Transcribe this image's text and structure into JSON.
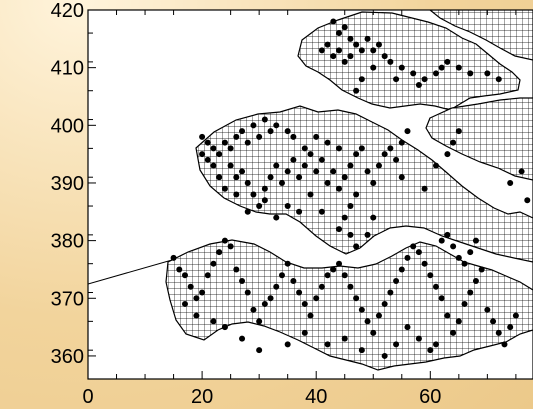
{
  "chart_data": {
    "type": "scatter",
    "title": "",
    "xlabel": "",
    "ylabel": "",
    "xlim": [
      0,
      78
    ],
    "ylim": [
      356,
      420
    ],
    "x_ticks": [
      0,
      20,
      40,
      60
    ],
    "y_ticks": [
      360,
      370,
      380,
      390,
      400,
      410,
      420
    ],
    "x_tick_labels": [
      "0",
      "20",
      "40",
      "60"
    ],
    "y_tick_labels": [
      "360",
      "370",
      "380",
      "390",
      "400",
      "410",
      "420"
    ],
    "grid": false,
    "background_map": "gridded-islands",
    "series": [
      {
        "marker": "filled-circle",
        "color": "#000000",
        "points": [
          [
            43,
            418
          ],
          [
            44,
            416
          ],
          [
            45,
            417
          ],
          [
            41,
            413
          ],
          [
            42,
            414
          ],
          [
            43,
            412
          ],
          [
            44,
            413
          ],
          [
            45,
            411
          ],
          [
            46,
            415
          ],
          [
            46,
            412
          ],
          [
            47,
            414
          ],
          [
            48,
            413
          ],
          [
            49,
            415
          ],
          [
            50,
            413
          ],
          [
            51,
            414
          ],
          [
            52,
            412
          ],
          [
            50,
            410
          ],
          [
            53,
            411
          ],
          [
            55,
            410
          ],
          [
            54,
            408
          ],
          [
            57,
            409
          ],
          [
            58,
            407
          ],
          [
            59,
            408
          ],
          [
            61,
            409
          ],
          [
            62,
            410
          ],
          [
            63,
            411
          ],
          [
            65,
            410
          ],
          [
            67,
            409
          ],
          [
            70,
            409
          ],
          [
            72,
            408
          ],
          [
            48,
            408
          ],
          [
            47,
            406
          ],
          [
            20,
            398
          ],
          [
            21,
            397
          ],
          [
            22,
            396
          ],
          [
            20,
            395
          ],
          [
            21,
            394
          ],
          [
            22,
            393
          ],
          [
            23,
            395
          ],
          [
            24,
            397
          ],
          [
            25,
            396
          ],
          [
            26,
            398
          ],
          [
            27,
            399
          ],
          [
            28,
            397
          ],
          [
            29,
            400
          ],
          [
            30,
            398
          ],
          [
            31,
            401
          ],
          [
            32,
            399
          ],
          [
            33,
            400
          ],
          [
            35,
            399
          ],
          [
            36,
            398
          ],
          [
            25,
            393
          ],
          [
            26,
            391
          ],
          [
            27,
            392
          ],
          [
            28,
            390
          ],
          [
            29,
            388
          ],
          [
            30,
            386
          ],
          [
            31,
            389
          ],
          [
            32,
            391
          ],
          [
            33,
            393
          ],
          [
            34,
            390
          ],
          [
            35,
            392
          ],
          [
            36,
            394
          ],
          [
            37,
            391
          ],
          [
            38,
            393
          ],
          [
            39,
            395
          ],
          [
            40,
            392
          ],
          [
            41,
            394
          ],
          [
            42,
            390
          ],
          [
            43,
            392
          ],
          [
            44,
            389
          ],
          [
            45,
            391
          ],
          [
            46,
            393
          ],
          [
            47,
            395
          ],
          [
            48,
            396
          ],
          [
            49,
            392
          ],
          [
            50,
            390
          ],
          [
            51,
            393
          ],
          [
            52,
            395
          ],
          [
            53,
            396
          ],
          [
            54,
            394
          ],
          [
            46,
            386
          ],
          [
            47,
            388
          ],
          [
            45,
            384
          ],
          [
            44,
            382
          ],
          [
            46,
            381
          ],
          [
            47,
            379
          ],
          [
            49,
            381
          ],
          [
            50,
            384
          ],
          [
            41,
            385
          ],
          [
            39,
            388
          ],
          [
            37,
            385
          ],
          [
            35,
            386
          ],
          [
            33,
            384
          ],
          [
            31,
            387
          ],
          [
            28,
            385
          ],
          [
            26,
            388
          ],
          [
            24,
            389
          ],
          [
            23,
            391
          ],
          [
            38,
            396
          ],
          [
            40,
            398
          ],
          [
            42,
            397
          ],
          [
            44,
            396
          ],
          [
            55,
            397
          ],
          [
            56,
            399
          ],
          [
            55,
            391
          ],
          [
            59,
            389
          ],
          [
            61,
            393
          ],
          [
            63,
            395
          ],
          [
            64,
            397
          ],
          [
            65,
            399
          ],
          [
            74,
            390
          ],
          [
            76,
            392
          ],
          [
            77,
            387
          ],
          [
            15,
            377
          ],
          [
            16,
            375
          ],
          [
            17,
            374
          ],
          [
            18,
            372
          ],
          [
            19,
            370
          ],
          [
            20,
            371
          ],
          [
            21,
            374
          ],
          [
            22,
            376
          ],
          [
            23,
            378
          ],
          [
            24,
            380
          ],
          [
            25,
            379
          ],
          [
            26,
            375
          ],
          [
            27,
            373
          ],
          [
            28,
            371
          ],
          [
            29,
            368
          ],
          [
            30,
            366
          ],
          [
            31,
            369
          ],
          [
            32,
            370
          ],
          [
            33,
            372
          ],
          [
            34,
            374
          ],
          [
            35,
            376
          ],
          [
            36,
            373
          ],
          [
            37,
            371
          ],
          [
            38,
            369
          ],
          [
            39,
            367
          ],
          [
            40,
            370
          ],
          [
            41,
            372
          ],
          [
            42,
            374
          ],
          [
            43,
            375
          ],
          [
            44,
            376
          ],
          [
            45,
            374
          ],
          [
            46,
            372
          ],
          [
            47,
            370
          ],
          [
            48,
            368
          ],
          [
            49,
            366
          ],
          [
            50,
            364
          ],
          [
            51,
            367
          ],
          [
            52,
            369
          ],
          [
            53,
            371
          ],
          [
            54,
            373
          ],
          [
            55,
            375
          ],
          [
            56,
            377
          ],
          [
            57,
            379
          ],
          [
            58,
            378
          ],
          [
            59,
            376
          ],
          [
            60,
            374
          ],
          [
            61,
            372
          ],
          [
            62,
            370
          ],
          [
            63,
            367
          ],
          [
            64,
            364
          ],
          [
            65,
            366
          ],
          [
            66,
            369
          ],
          [
            67,
            371
          ],
          [
            68,
            373
          ],
          [
            69,
            375
          ],
          [
            70,
            368
          ],
          [
            71,
            366
          ],
          [
            72,
            364
          ],
          [
            73,
            362
          ],
          [
            74,
            365
          ],
          [
            75,
            367
          ],
          [
            62,
            380
          ],
          [
            63,
            381
          ],
          [
            64,
            379
          ],
          [
            65,
            377
          ],
          [
            66,
            376
          ],
          [
            67,
            378
          ],
          [
            68,
            380
          ],
          [
            61,
            362
          ],
          [
            60,
            361
          ],
          [
            58,
            363
          ],
          [
            56,
            365
          ],
          [
            54,
            362
          ],
          [
            52,
            360
          ],
          [
            48,
            361
          ],
          [
            45,
            363
          ],
          [
            42,
            362
          ],
          [
            38,
            364
          ],
          [
            35,
            362
          ],
          [
            30,
            361
          ],
          [
            27,
            363
          ],
          [
            24,
            365
          ],
          [
            22,
            366
          ],
          [
            19,
            367
          ],
          [
            17,
            369
          ]
        ]
      }
    ]
  }
}
